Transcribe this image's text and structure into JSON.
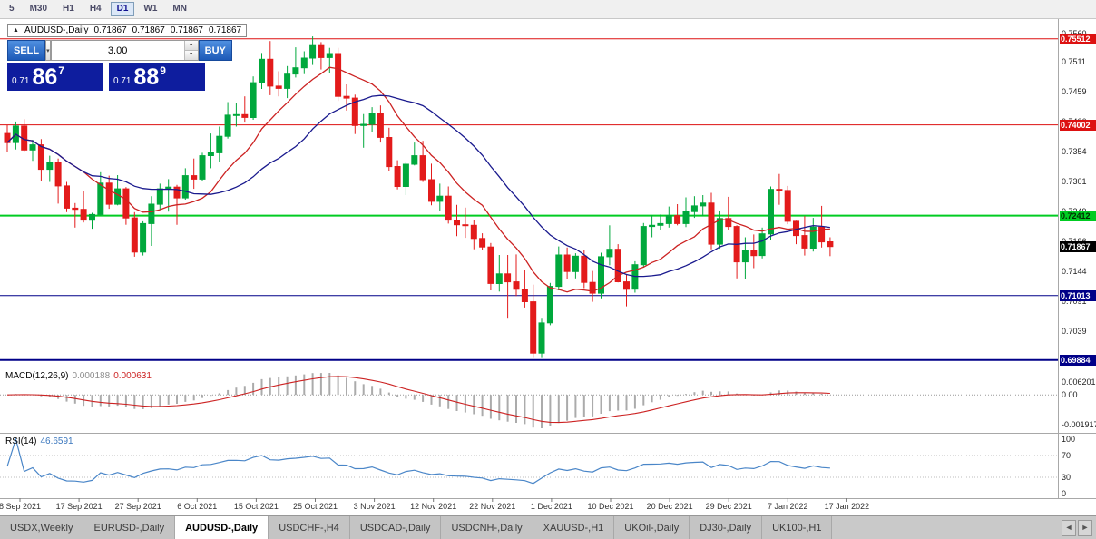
{
  "toolbar": {
    "periods": [
      "5",
      "M30",
      "H1",
      "H4",
      "D1",
      "W1",
      "MN"
    ],
    "active": "D1"
  },
  "chart_header": {
    "collapse_icon": "▲",
    "symbol": "AUDUSD-,Daily",
    "open": "0.71867",
    "high": "0.71867",
    "low": "0.71867",
    "close": "0.71867"
  },
  "trade_panel": {
    "sell_label": "SELL",
    "buy_label": "BUY",
    "volume": "3.00",
    "dropdown_icon": "▾",
    "spin_up_icon": "▴",
    "spin_down_icon": "▾",
    "bid_small": "0.71",
    "bid_big": "86",
    "bid_sup": "7",
    "ask_small": "0.71",
    "ask_big": "88",
    "ask_sup": "9"
  },
  "price_scale": {
    "labels": [
      "0.7560",
      "0.7511",
      "0.7459",
      "0.7406",
      "0.7354",
      "0.7301",
      "0.7249",
      "0.7196",
      "0.7144",
      "0.7091",
      "0.7039",
      "0.6986"
    ]
  },
  "levels": [
    {
      "price": 0.7551,
      "label": "0.75512",
      "line_color": "#dd1111",
      "tag_bg": "#dd1111",
      "tag_text": "#ffffff",
      "width": 1
    },
    {
      "price": 0.74,
      "label": "0.74002",
      "line_color": "#dd1111",
      "tag_bg": "#dd1111",
      "tag_text": "#ffffff",
      "width": 1
    },
    {
      "price": 0.7241,
      "label": "0.72412",
      "line_color": "#00cc22",
      "tag_bg": "#00cc22",
      "tag_text": "#002b00",
      "width": 2
    },
    {
      "price": 0.7101,
      "label": "0.71013",
      "line_color": "#000088",
      "tag_bg": "#000088",
      "tag_text": "#ffffff",
      "width": 1
    },
    {
      "price": 0.6988,
      "label": "0.69884",
      "line_color": "#000088",
      "tag_bg": "#000088",
      "tag_text": "#ffffff",
      "width": 2
    }
  ],
  "current_price": {
    "price": 0.71867,
    "label": "0.71867",
    "tag_bg": "#000000",
    "tag_text": "#ffffff"
  },
  "indicators": {
    "macd": {
      "name": "MACD(12,26,9)",
      "value_main": "0.000188",
      "value_signal": "0.000631",
      "axis_top": "0.006201",
      "axis_zero": "0.00",
      "axis_bottom": "-0.001917",
      "histogram_color": "#ababab",
      "signal_color": "#cc2222"
    },
    "rsi": {
      "name": "RSI(14)",
      "value": "46.6591",
      "axis": [
        100,
        70,
        30,
        0
      ],
      "dotted_levels": [
        70,
        30
      ],
      "line_color": "#4a86c8"
    }
  },
  "dates": [
    "8 Sep 2021",
    "17 Sep 2021",
    "27 Sep 2021",
    "6 Oct 2021",
    "15 Oct 2021",
    "25 Oct 2021",
    "3 Nov 2021",
    "12 Nov 2021",
    "22 Nov 2021",
    "1 Dec 2021",
    "10 Dec 2021",
    "20 Dec 2021",
    "29 Dec 2021",
    "7 Jan 2022",
    "17 Jan 2022"
  ],
  "tabs": {
    "items": [
      "USDX,Weekly",
      "EURUSD-,Daily",
      "AUDUSD-,Daily",
      "USDCHF-,H4",
      "USDCAD-,Daily",
      "USDCNH-,Daily",
      "XAUUSD-,H1",
      "UKOil-,Daily",
      "DJ30-,Daily",
      "UK100-,H1"
    ],
    "active_index": 2,
    "left_arrow": "◄",
    "right_arrow": "►"
  },
  "chart_data": {
    "type": "candlestick",
    "title": "AUDUSD-,Daily",
    "ylim": [
      0.696,
      0.7575
    ],
    "up_color": "#00a83c",
    "down_color": "#e31b1b",
    "ma_fast": {
      "period": 10,
      "color": "#cc2222"
    },
    "ma_slow": {
      "period": 21,
      "color": "#1a1a8e"
    },
    "candles": [
      [
        0.7385,
        0.74,
        0.7352,
        0.7369
      ],
      [
        0.7369,
        0.7406,
        0.7357,
        0.7398
      ],
      [
        0.7398,
        0.741,
        0.7354,
        0.7356
      ],
      [
        0.7356,
        0.7374,
        0.7337,
        0.7365
      ],
      [
        0.7365,
        0.7375,
        0.7301,
        0.7322
      ],
      [
        0.7322,
        0.7346,
        0.73,
        0.7334
      ],
      [
        0.7334,
        0.7341,
        0.7262,
        0.7293
      ],
      [
        0.7293,
        0.73,
        0.7247,
        0.7254
      ],
      [
        0.7254,
        0.7263,
        0.722,
        0.7252
      ],
      [
        0.7252,
        0.7284,
        0.7229,
        0.7233
      ],
      [
        0.7233,
        0.7246,
        0.7218,
        0.7243
      ],
      [
        0.7243,
        0.7317,
        0.7241,
        0.7298
      ],
      [
        0.7298,
        0.7311,
        0.7253,
        0.7261
      ],
      [
        0.7261,
        0.7312,
        0.7259,
        0.7288
      ],
      [
        0.7288,
        0.7291,
        0.7225,
        0.7237
      ],
      [
        0.7237,
        0.7247,
        0.7169,
        0.7177
      ],
      [
        0.7177,
        0.7231,
        0.7171,
        0.7227
      ],
      [
        0.7227,
        0.7275,
        0.7188,
        0.7261
      ],
      [
        0.7261,
        0.7297,
        0.7251,
        0.7288
      ],
      [
        0.7288,
        0.7305,
        0.7248,
        0.7291
      ],
      [
        0.7291,
        0.7295,
        0.7225,
        0.7272
      ],
      [
        0.7272,
        0.7324,
        0.7269,
        0.7311
      ],
      [
        0.7311,
        0.7341,
        0.7288,
        0.7305
      ],
      [
        0.7305,
        0.7351,
        0.7302,
        0.7346
      ],
      [
        0.7346,
        0.7385,
        0.7324,
        0.7351
      ],
      [
        0.7351,
        0.7397,
        0.7335,
        0.738
      ],
      [
        0.738,
        0.744,
        0.7376,
        0.7417
      ],
      [
        0.7417,
        0.7439,
        0.7397,
        0.7418
      ],
      [
        0.7418,
        0.745,
        0.7404,
        0.7413
      ],
      [
        0.7413,
        0.7485,
        0.7409,
        0.7474
      ],
      [
        0.7474,
        0.7526,
        0.7463,
        0.7515
      ],
      [
        0.7515,
        0.7547,
        0.7452,
        0.7468
      ],
      [
        0.7468,
        0.7494,
        0.745,
        0.7464
      ],
      [
        0.7464,
        0.7503,
        0.7447,
        0.7489
      ],
      [
        0.7489,
        0.7536,
        0.7483,
        0.75
      ],
      [
        0.75,
        0.7529,
        0.7489,
        0.7517
      ],
      [
        0.7517,
        0.7555,
        0.7505,
        0.7539
      ],
      [
        0.7539,
        0.7545,
        0.7497,
        0.7518
      ],
      [
        0.7518,
        0.7535,
        0.7491,
        0.7525
      ],
      [
        0.7525,
        0.7535,
        0.7442,
        0.745
      ],
      [
        0.745,
        0.7471,
        0.7425,
        0.7447
      ],
      [
        0.7447,
        0.7453,
        0.7384,
        0.7399
      ],
      [
        0.7399,
        0.7419,
        0.736,
        0.7401
      ],
      [
        0.7401,
        0.7431,
        0.7388,
        0.742
      ],
      [
        0.742,
        0.7434,
        0.7369,
        0.7378
      ],
      [
        0.7378,
        0.7395,
        0.7319,
        0.7327
      ],
      [
        0.7327,
        0.7338,
        0.7287,
        0.7292
      ],
      [
        0.7292,
        0.7334,
        0.7277,
        0.7331
      ],
      [
        0.7331,
        0.7369,
        0.7329,
        0.7346
      ],
      [
        0.7346,
        0.7372,
        0.73,
        0.7304
      ],
      [
        0.7304,
        0.7332,
        0.7259,
        0.7266
      ],
      [
        0.7266,
        0.7297,
        0.725,
        0.7275
      ],
      [
        0.7275,
        0.7292,
        0.7227,
        0.7233
      ],
      [
        0.7233,
        0.726,
        0.7205,
        0.7225
      ],
      [
        0.7225,
        0.7255,
        0.7202,
        0.7224
      ],
      [
        0.7224,
        0.7234,
        0.7182,
        0.7201
      ],
      [
        0.7201,
        0.721,
        0.718,
        0.7186
      ],
      [
        0.7186,
        0.7193,
        0.711,
        0.7122
      ],
      [
        0.7122,
        0.7172,
        0.7108,
        0.7139
      ],
      [
        0.7139,
        0.7172,
        0.7062,
        0.7125
      ],
      [
        0.7125,
        0.7173,
        0.71,
        0.7112
      ],
      [
        0.7112,
        0.7145,
        0.708,
        0.709
      ],
      [
        0.709,
        0.712,
        0.6993,
        0.7
      ],
      [
        0.7,
        0.7062,
        0.6993,
        0.7053
      ],
      [
        0.7053,
        0.7123,
        0.7049,
        0.7117
      ],
      [
        0.7117,
        0.7187,
        0.711,
        0.7172
      ],
      [
        0.7172,
        0.7185,
        0.713,
        0.7143
      ],
      [
        0.7143,
        0.7175,
        0.7131,
        0.717
      ],
      [
        0.717,
        0.7181,
        0.7114,
        0.7124
      ],
      [
        0.7124,
        0.7144,
        0.709,
        0.7105
      ],
      [
        0.7105,
        0.7176,
        0.7096,
        0.7169
      ],
      [
        0.7169,
        0.7224,
        0.7154,
        0.7182
      ],
      [
        0.7182,
        0.7191,
        0.7124,
        0.7125
      ],
      [
        0.7125,
        0.7138,
        0.7082,
        0.7112
      ],
      [
        0.7112,
        0.7161,
        0.7106,
        0.7155
      ],
      [
        0.7155,
        0.7228,
        0.715,
        0.7222
      ],
      [
        0.7222,
        0.7242,
        0.7203,
        0.7224
      ],
      [
        0.7224,
        0.7243,
        0.7216,
        0.7227
      ],
      [
        0.7227,
        0.7257,
        0.722,
        0.7241
      ],
      [
        0.7241,
        0.7261,
        0.7224,
        0.7227
      ],
      [
        0.7227,
        0.7273,
        0.7221,
        0.7248
      ],
      [
        0.7248,
        0.7275,
        0.7237,
        0.7258
      ],
      [
        0.7258,
        0.7277,
        0.724,
        0.7263
      ],
      [
        0.7263,
        0.7281,
        0.7182,
        0.7191
      ],
      [
        0.7191,
        0.725,
        0.7183,
        0.7236
      ],
      [
        0.7236,
        0.7274,
        0.7216,
        0.7222
      ],
      [
        0.7222,
        0.7224,
        0.7131,
        0.716
      ],
      [
        0.716,
        0.7203,
        0.713,
        0.718
      ],
      [
        0.718,
        0.7208,
        0.7149,
        0.7171
      ],
      [
        0.7171,
        0.722,
        0.7166,
        0.7209
      ],
      [
        0.7209,
        0.7292,
        0.7199,
        0.7287
      ],
      [
        0.7287,
        0.7314,
        0.726,
        0.7285
      ],
      [
        0.7285,
        0.7293,
        0.7226,
        0.7231
      ],
      [
        0.7231,
        0.7232,
        0.7191,
        0.7206
      ],
      [
        0.7206,
        0.724,
        0.7171,
        0.7184
      ],
      [
        0.7184,
        0.7237,
        0.7178,
        0.7221
      ],
      [
        0.7221,
        0.7258,
        0.7185,
        0.7195
      ],
      [
        0.7195,
        0.7203,
        0.717,
        0.71867
      ]
    ]
  }
}
